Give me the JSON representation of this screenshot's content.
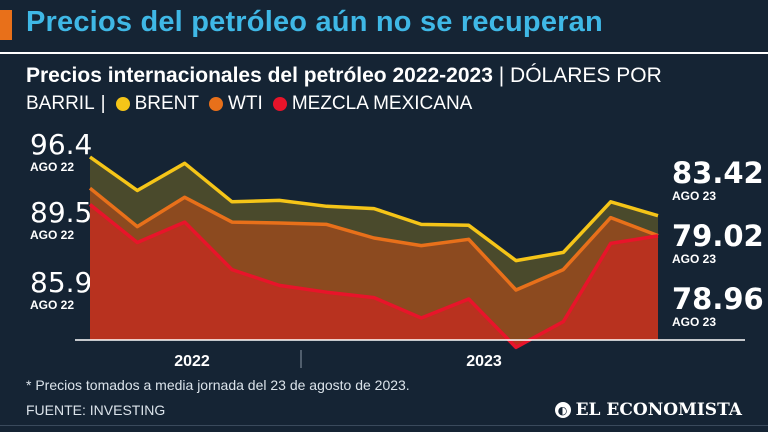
{
  "headline": "Precios del petróleo aún no se recuperan",
  "subtitle": {
    "title": "Precios internacionales del petróleo 2022-2023",
    "separator": "|",
    "unit_part1": "DÓLARES POR",
    "unit_part2": "BARRIL"
  },
  "legend": [
    {
      "label": "BRENT",
      "color": "#f5c518"
    },
    {
      "label": "WTI",
      "color": "#e8701a"
    },
    {
      "label": "MEZCLA MEXICANA",
      "color": "#e8142a"
    }
  ],
  "left_values": [
    {
      "value": "96.4",
      "date": "AGO 22"
    },
    {
      "value": "89.5",
      "date": "AGO 22"
    },
    {
      "value": "85.9",
      "date": "AGO 22"
    }
  ],
  "right_values": [
    {
      "value": "83.42",
      "date": "AGO 23"
    },
    {
      "value": "79.02",
      "date": "AGO 23"
    },
    {
      "value": "78.96",
      "date": "AGO 23"
    }
  ],
  "chart_data": {
    "type": "area",
    "title": "Precios internacionales del petróleo 2022-2023",
    "ylabel": "Dólares por barril",
    "xlabel": "",
    "ylim": [
      65,
      97
    ],
    "x_tick_labels": [
      "2022",
      "2023"
    ],
    "grid": false,
    "series": [
      {
        "name": "BRENT",
        "color": "#f5c518",
        "values": [
          96.4,
          89.0,
          95.0,
          86.5,
          86.8,
          85.5,
          85.0,
          81.5,
          81.3,
          73.5,
          75.3,
          86.5,
          83.42
        ]
      },
      {
        "name": "WTI",
        "color": "#e8701a",
        "values": [
          89.5,
          81.0,
          87.5,
          82.0,
          81.8,
          81.5,
          78.5,
          76.8,
          78.2,
          67.0,
          71.5,
          83.0,
          79.02
        ]
      },
      {
        "name": "MEZCLA MEXICANA",
        "color": "#e8142a",
        "values": [
          85.9,
          77.5,
          82.0,
          71.5,
          68.0,
          66.5,
          65.3,
          60.8,
          65.0,
          54.3,
          60.0,
          77.3,
          78.96
        ]
      }
    ]
  },
  "footnote": "* Precios tomados a media jornada del 23 de agosto de 2023.",
  "source": "FUENTE: INVESTING",
  "brand": "EL ECONOMISTA"
}
